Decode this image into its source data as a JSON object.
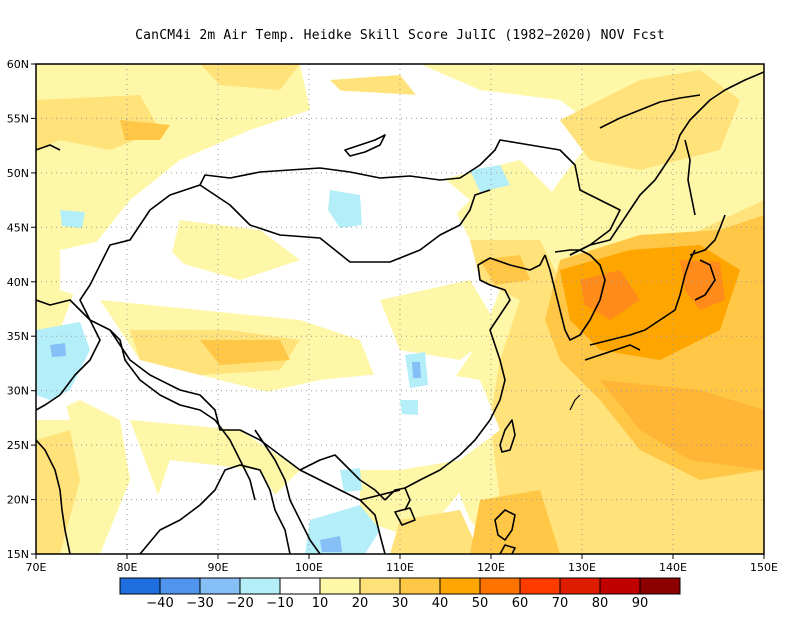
{
  "title": "CanCM4i  2m Air Temp. Heidke Skill Score JulIC (1982−2020) NOV Fcst",
  "axes": {
    "lon_labels": [
      "70E",
      "80E",
      "90E",
      "100E",
      "110E",
      "120E",
      "130E",
      "140E",
      "150E"
    ],
    "lat_labels": [
      "60N",
      "55N",
      "50N",
      "45N",
      "40N",
      "35N",
      "30N",
      "25N",
      "20N",
      "15N"
    ]
  },
  "colorbar": {
    "colors": [
      "#1f6fe0",
      "#4f95ee",
      "#86bff6",
      "#b4eef8",
      "#ffffff",
      "#fff7a8",
      "#ffe27a",
      "#ffc745",
      "#ffa500",
      "#ff7300",
      "#ff3b00",
      "#e01c00",
      "#c00000",
      "#8c0000"
    ],
    "labels": [
      "−40",
      "−30",
      "−20",
      "−10",
      "10",
      "20",
      "30",
      "40",
      "50",
      "60",
      "70",
      "80",
      "90"
    ]
  },
  "map_extent": {
    "lon": [
      70,
      150
    ],
    "lat": [
      15,
      60
    ]
  }
}
